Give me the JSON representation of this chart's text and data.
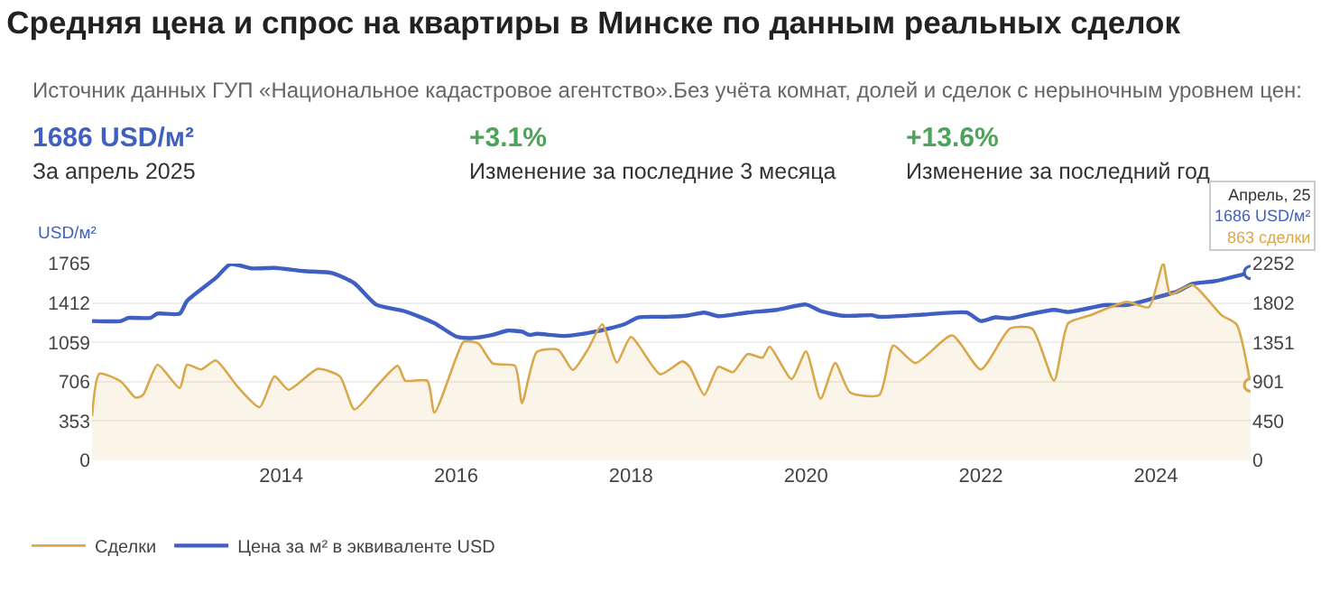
{
  "chart_data": {
    "type": "line",
    "title": "Средняя цена и спрос на квартиры в Минске по данным реальных сделок",
    "subtitle": "Источник данных ГУП «Национальное кадастровое агентство».Без учёта комнат, долей и сделок с нерыночным уровнем цен:",
    "ylabel": "USD/м²",
    "xlim": [
      "2012-01",
      "2025-04"
    ],
    "xticks": [
      {
        "value": "2014-03",
        "label": "2014"
      },
      {
        "value": "2016-03",
        "label": "2016"
      },
      {
        "value": "2018-03",
        "label": "2018"
      },
      {
        "value": "2020-03",
        "label": "2020"
      },
      {
        "value": "2022-03",
        "label": "2022"
      },
      {
        "value": "2024-03",
        "label": "2024"
      }
    ],
    "ylim": [
      0,
      1765
    ],
    "yticks": [
      0,
      353,
      706,
      1059,
      1412,
      1765
    ],
    "y2lim": [
      0,
      2252
    ],
    "y2ticks": [
      0,
      450,
      901,
      1351,
      1802,
      2252
    ],
    "grid": "y",
    "legend": "bottom left",
    "series": [
      {
        "name": "Цена за м² в эквиваленте USD",
        "color": "#3f5fc2",
        "x": [
          "2012-01",
          "2012-05",
          "2012-06",
          "2012-09",
          "2012-10",
          "2013-01",
          "2013-02",
          "2013-06",
          "2013-08",
          "2013-11",
          "2014-02",
          "2014-06",
          "2014-10",
          "2015-01",
          "2015-04",
          "2015-08",
          "2015-12",
          "2016-03",
          "2016-05",
          "2016-08",
          "2016-10",
          "2016-12",
          "2017-01",
          "2017-02",
          "2017-06",
          "2017-10",
          "2018-02",
          "2018-04",
          "2018-08",
          "2018-11",
          "2019-01",
          "2019-03",
          "2019-07",
          "2019-11",
          "2020-03",
          "2020-05",
          "2020-08",
          "2020-12",
          "2021-01",
          "2021-07",
          "2022-01",
          "2022-03",
          "2022-05",
          "2022-07",
          "2022-09",
          "2023-01",
          "2023-03",
          "2023-08",
          "2023-11",
          "2024-03",
          "2024-06",
          "2024-08",
          "2024-11",
          "2025-04"
        ],
        "values": [
          1250,
          1250,
          1278,
          1278,
          1316,
          1316,
          1431,
          1636,
          1760,
          1722,
          1727,
          1698,
          1679,
          1588,
          1398,
          1336,
          1231,
          1111,
          1097,
          1126,
          1164,
          1154,
          1126,
          1135,
          1116,
          1154,
          1221,
          1283,
          1288,
          1302,
          1326,
          1293,
          1326,
          1350,
          1398,
          1340,
          1297,
          1302,
          1288,
          1307,
          1326,
          1250,
          1283,
          1274,
          1302,
          1350,
          1331,
          1393,
          1393,
          1460,
          1517,
          1584,
          1607,
          1686
        ]
      },
      {
        "name": "Сделки",
        "type": "area",
        "axis": "y2",
        "color": "#d9a84a",
        "x": [
          "2012-01",
          "2012-02",
          "2012-05",
          "2012-07",
          "2012-08",
          "2012-10",
          "2013-01",
          "2013-02",
          "2013-04",
          "2013-06",
          "2013-09",
          "2013-12",
          "2014-02",
          "2014-04",
          "2014-08",
          "2014-11",
          "2015-01",
          "2015-04",
          "2015-07",
          "2015-08",
          "2015-11",
          "2015-12",
          "2016-03",
          "2016-04",
          "2016-06",
          "2016-08",
          "2016-11",
          "2016-12",
          "2017-02",
          "2017-05",
          "2017-07",
          "2017-09",
          "2017-11",
          "2018-01",
          "2018-03",
          "2018-07",
          "2018-10",
          "2018-11",
          "2019-01",
          "2019-03",
          "2019-05",
          "2019-07",
          "2019-09",
          "2019-10",
          "2020-01",
          "2020-03",
          "2020-05",
          "2020-07",
          "2020-09",
          "2021-01",
          "2021-03",
          "2021-06",
          "2021-11",
          "2022-03",
          "2022-07",
          "2022-10",
          "2023-01",
          "2023-03",
          "2023-06",
          "2023-11",
          "2024-02",
          "2024-04",
          "2024-05",
          "2024-08",
          "2024-12",
          "2025-02",
          "2025-04"
        ],
        "values": [
          505,
          992,
          901,
          718,
          749,
          1095,
          828,
          1095,
          1041,
          1144,
          840,
          609,
          962,
          809,
          1047,
          962,
          584,
          840,
          1083,
          913,
          913,
          548,
          1175,
          1357,
          1339,
          1108,
          1083,
          657,
          1241,
          1266,
          1035,
          1266,
          1558,
          1120,
          1412,
          986,
          1132,
          1071,
          749,
          1071,
          1010,
          1217,
          1175,
          1302,
          931,
          1248,
          706,
          1114,
          779,
          749,
          1315,
          1114,
          1430,
          1041,
          1509,
          1509,
          913,
          1570,
          1661,
          1814,
          1753,
          2252,
          1905,
          2008,
          1661,
          1558,
          863
        ]
      }
    ],
    "annotations": [
      "1686 USD/м²",
      "За апрель 2025",
      "+3.1%",
      "Изменение за последние 3 месяца",
      "+13.6%",
      "Изменение за последний год",
      {
        "text": "Апрель, 25\n1686 USD/м²\n863 сделки",
        "x": "2025-04",
        "y": 1686
      }
    ]
  }
}
